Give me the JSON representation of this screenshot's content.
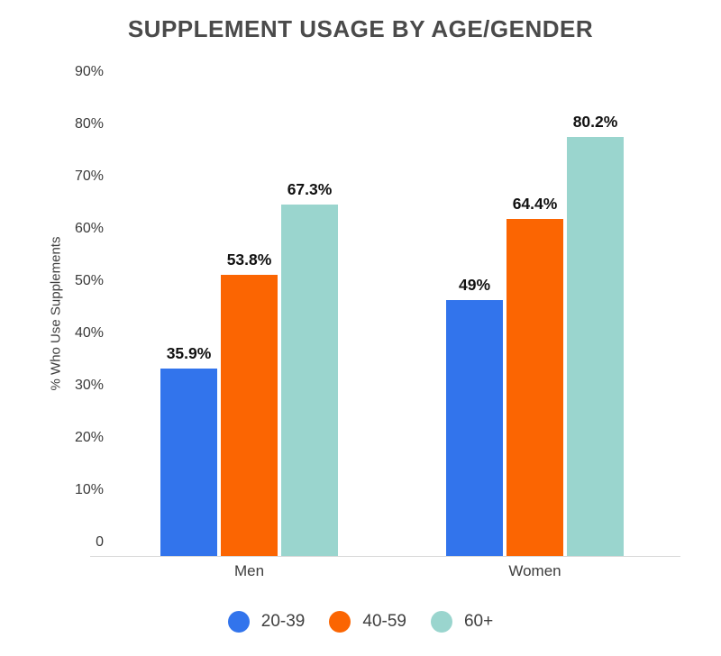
{
  "chart_data": {
    "type": "bar",
    "title": "SUPPLEMENT USAGE BY AGE/GENDER",
    "ylabel": "% Who Use Supplements",
    "xlabel": "",
    "categories": [
      "Men",
      "Women"
    ],
    "series": [
      {
        "name": "20-39",
        "color": "#3274EC",
        "values": [
          35.9,
          49
        ],
        "labels": [
          "35.9%",
          "49%"
        ]
      },
      {
        "name": "40-59",
        "color": "#FB6502",
        "values": [
          53.8,
          64.4
        ],
        "labels": [
          "53.8%",
          "64.4%"
        ]
      },
      {
        "name": "60+",
        "color": "#9AD5CE",
        "values": [
          67.3,
          80.2
        ],
        "labels": [
          "67.3%",
          "80.2%"
        ]
      }
    ],
    "y_ticks": [
      {
        "value": 0,
        "label": "0"
      },
      {
        "value": 10,
        "label": "10%"
      },
      {
        "value": 20,
        "label": "20%"
      },
      {
        "value": 30,
        "label": "30%"
      },
      {
        "value": 40,
        "label": "40%"
      },
      {
        "value": 50,
        "label": "50%"
      },
      {
        "value": 60,
        "label": "60%"
      },
      {
        "value": 70,
        "label": "70%"
      },
      {
        "value": 80,
        "label": "80%"
      },
      {
        "value": 90,
        "label": "90%"
      }
    ],
    "ylim": [
      0,
      90
    ],
    "grid": false,
    "legend_position": "bottom",
    "legend": [
      "20-39",
      "40-59",
      "60+"
    ]
  },
  "colors": {
    "background": "#FFFFFF",
    "title_text": "#4A4A4A",
    "axis_text": "#3A3A3A",
    "data_label_text": "#111111",
    "baseline": "#D9D9D9",
    "series_blue": "#3274EC",
    "series_orange": "#FB6502",
    "series_teal": "#9AD5CE"
  }
}
